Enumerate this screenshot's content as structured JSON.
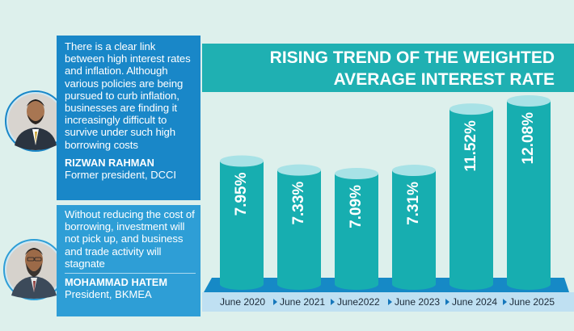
{
  "title_lines": [
    "RISING TREND OF THE WEIGHTED",
    "AVERAGE INTEREST RATE"
  ],
  "quotes": [
    {
      "text": "There is a clear link between high interest rates and inflation. Although various policies are being pursued to curb inflation, businesses are finding it increasingly difficult to survive under such high borrowing costs",
      "name": "RIZWAN RAHMAN",
      "role": "Former president, DCCI"
    },
    {
      "text": "Without reducing the cost of borrowing, investment will not pick up, and business and trade activity will stagnate",
      "name": "MOHAMMAD HATEM",
      "role": "President, BKMEA"
    }
  ],
  "chart_data": {
    "type": "bar",
    "title": "RISING TREND OF THE WEIGHTED AVERAGE INTEREST RATE",
    "categories": [
      "June 2020",
      "June 2021",
      "June2022",
      "June 2023",
      "June 2024",
      "June 2025"
    ],
    "values": [
      7.95,
      7.33,
      7.09,
      7.31,
      11.52,
      12.08
    ],
    "labels": [
      "7.95%",
      "7.33%",
      "7.09%",
      "7.31%",
      "11.52%",
      "12.08%"
    ],
    "xlabel": "",
    "ylabel": "",
    "grid": false,
    "legend": "none"
  },
  "colors": {
    "background": "#ddf0ec",
    "bar": "#17aeb0",
    "bar_top": "#a8e2e6",
    "title_band": "#1fb0b2",
    "platform": "#1689c6",
    "axis_band": "#bfe0f2",
    "quote1_bg": "#1987c8",
    "quote2_bg": "#2e9ed6",
    "arrow": "#1677bb"
  }
}
